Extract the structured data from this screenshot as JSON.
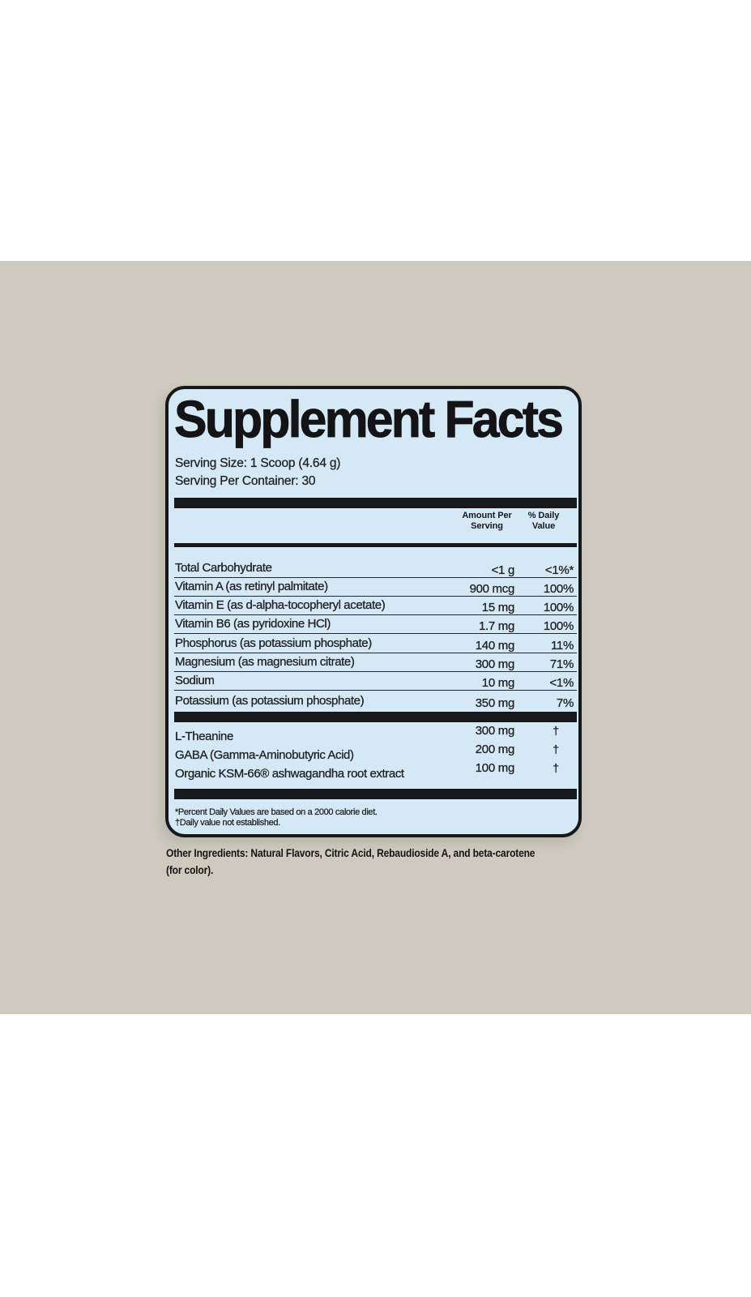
{
  "colors": {
    "page_background": "#ffffff",
    "band_background": "#cecabd",
    "label_background": "#d5e8f5",
    "ink": "#17181b"
  },
  "label": {
    "title": "Supplement Facts",
    "serving_size": "Serving Size: 1 Scoop (4.64 g)",
    "servings_per_container": "Serving Per Container: 30",
    "columns": {
      "amount_line1": "Amount Per",
      "amount_line2": "Serving",
      "daily_line1": "% Daily",
      "daily_line2": "Value"
    },
    "main_rows": [
      {
        "name": "Total Carbohydrate",
        "amount": "<1 g",
        "daily": "<1%*"
      },
      {
        "name": "Vitamin A (as retinyl palmitate)",
        "amount": "900 mcg",
        "daily": "100%"
      },
      {
        "name": "Vitamin E (as d-alpha-tocopheryl acetate)",
        "amount": "15 mg",
        "daily": "100%"
      },
      {
        "name": "Vitamin B6 (as pyridoxine HCl)",
        "amount": "1.7 mg",
        "daily": "100%"
      },
      {
        "name": "Phosphorus (as potassium phosphate)",
        "amount": "140 mg",
        "daily": "11%"
      },
      {
        "name": "Magnesium (as magnesium citrate)",
        "amount": "300 mg",
        "daily": "71%"
      },
      {
        "name": "Sodium",
        "amount": "10 mg",
        "daily": "<1%"
      },
      {
        "name": "Potassium (as potassium phosphate)",
        "amount": "350 mg",
        "daily": "7%"
      }
    ],
    "blend_rows": [
      {
        "name": "L-Theanine",
        "amount": "300 mg",
        "daily": "†"
      },
      {
        "name": "GABA (Gamma-Aminobutyric Acid)",
        "amount": "200 mg",
        "daily": "†"
      },
      {
        "name": "Organic KSM-66® ashwagandha root extract",
        "amount": "100 mg",
        "daily": "†"
      }
    ],
    "footnotes": {
      "line1": "*Percent Daily Values are based on a 2000 calorie diet.",
      "line2": "†Daily value not established."
    }
  },
  "below_label": {
    "other_ingredients_line1": "Other Ingredients: Natural Flavors, Citric Acid, Rebaudioside A, and beta-carotene",
    "other_ingredients_line2": "(for color)."
  }
}
